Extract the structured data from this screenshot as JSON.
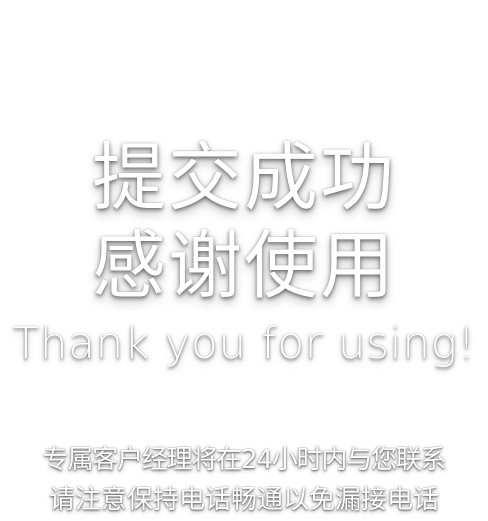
{
  "message": {
    "title_line1": "提交成功",
    "title_line2": "感谢使用",
    "subtitle": "Thank you for using!",
    "note_line1": "专属客户经理将在24小时内与您联系",
    "note_line2": "请注意保持电话畅通以免漏接电话"
  },
  "colors": {
    "background": "#ffffff",
    "text": "#ffffff",
    "shadow": "#000000"
  }
}
